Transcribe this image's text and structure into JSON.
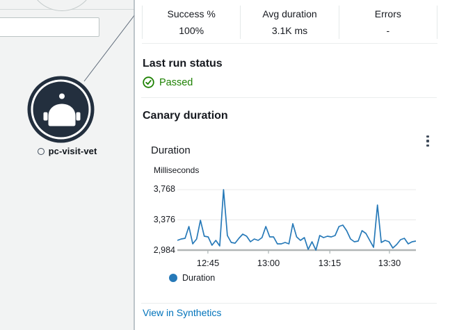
{
  "canvas": {
    "node_label": "pc-visit-vet"
  },
  "panel": {
    "stats": [
      {
        "label": "Success %",
        "value": "100%"
      },
      {
        "label": "Avg duration",
        "value": "3.1K ms"
      },
      {
        "label": "Errors",
        "value": "-"
      }
    ],
    "last_run": {
      "heading": "Last run status",
      "status": "Passed"
    },
    "canary_duration_heading": "Canary duration",
    "link_label": "View in Synthetics"
  },
  "chart_data": {
    "type": "line",
    "title": "Duration",
    "ylabel": "Milliseconds",
    "legend": [
      "Duration"
    ],
    "legend_position": "bottom",
    "grid": true,
    "ylim": [
      2944,
      3808
    ],
    "y_ticks": [
      {
        "value": 2984,
        "label": "2,984"
      },
      {
        "value": 3376,
        "label": "3,376"
      },
      {
        "value": 3768,
        "label": "3,768"
      }
    ],
    "x_ticks": [
      {
        "label": "12:45",
        "pos": 0.128
      },
      {
        "label": "13:00",
        "pos": 0.382
      },
      {
        "label": "13:15",
        "pos": 0.639
      },
      {
        "label": "13:30",
        "pos": 0.889
      }
    ],
    "series": [
      {
        "name": "Duration",
        "color": "#2679b8",
        "values": [
          3110,
          3128,
          3137,
          3290,
          3065,
          3128,
          3371,
          3164,
          3155,
          3047,
          3110,
          3038,
          3768,
          3173,
          3083,
          3074,
          3137,
          3191,
          3164,
          3092,
          3128,
          3110,
          3146,
          3290,
          3155,
          3155,
          3065,
          3065,
          3083,
          3065,
          3326,
          3155,
          3110,
          3146,
          2993,
          3092,
          2984,
          3173,
          3146,
          3164,
          3155,
          3173,
          3290,
          3308,
          3236,
          3128,
          3092,
          3101,
          3236,
          3200,
          3110,
          3020,
          3569,
          3083,
          3110,
          3092,
          3011,
          3056,
          3119,
          3137,
          3065,
          3092,
          3101
        ]
      }
    ]
  },
  "colors": {
    "line_blue": "#2679b8",
    "success_green": "#1d8102",
    "link_blue": "#0073bb",
    "node_navy": "#232f3e",
    "canvas_bg": "#f2f3f3"
  }
}
